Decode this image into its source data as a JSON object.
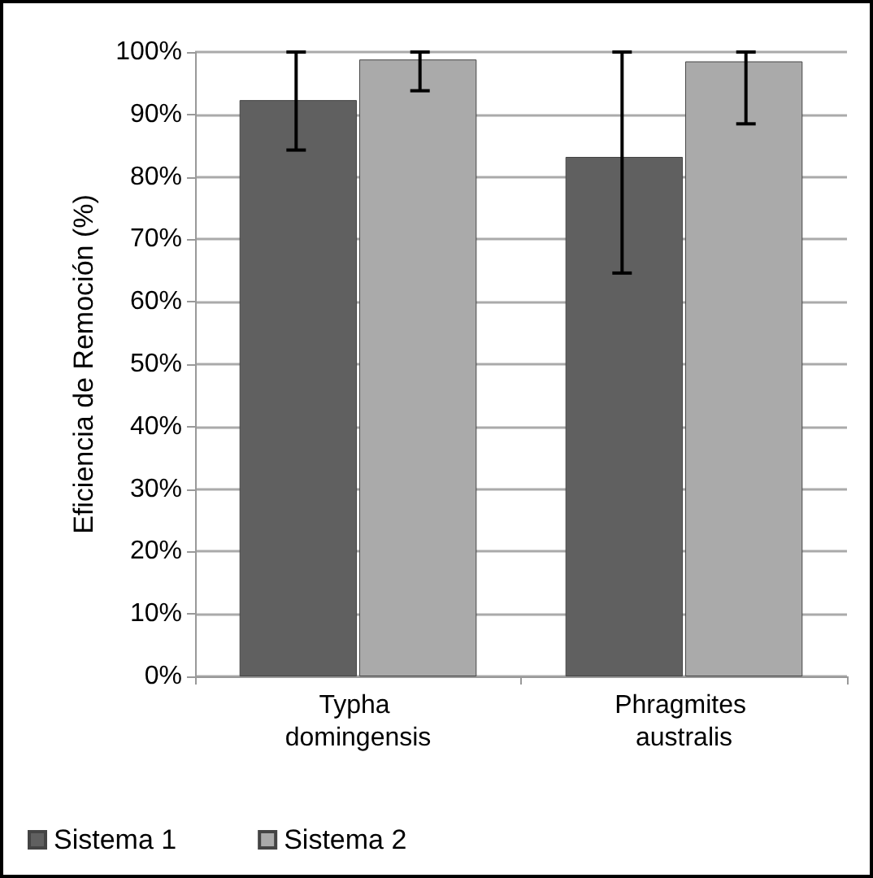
{
  "chart_data": {
    "type": "bar",
    "ylabel": "Eficiencia de Remoción (%)",
    "categories": [
      "Typha domingensis",
      "Phragmites australis"
    ],
    "series": [
      {
        "name": "Sistema 1",
        "color": "#606060",
        "values": [
          92.3,
          83.2
        ],
        "errors": [
          [
            84.3,
            100
          ],
          [
            64.6,
            100
          ]
        ]
      },
      {
        "name": "Sistema 2",
        "color": "#aaaaaa",
        "values": [
          98.8,
          98.5
        ],
        "errors": [
          [
            93.8,
            100
          ],
          [
            88.5,
            100
          ]
        ]
      }
    ],
    "ylim": [
      0,
      100
    ],
    "yticks": [
      {
        "value": 0,
        "label": "0%"
      },
      {
        "value": 10,
        "label": "10%"
      },
      {
        "value": 20,
        "label": "20%"
      },
      {
        "value": 30,
        "label": "30%"
      },
      {
        "value": 40,
        "label": "40%"
      },
      {
        "value": 50,
        "label": "50%"
      },
      {
        "value": 60,
        "label": "60%"
      },
      {
        "value": 70,
        "label": "70%"
      },
      {
        "value": 80,
        "label": "80%"
      },
      {
        "value": 90,
        "label": "90%"
      },
      {
        "value": 100,
        "label": "100%"
      }
    ],
    "grid": "y",
    "legend": "bottom"
  }
}
